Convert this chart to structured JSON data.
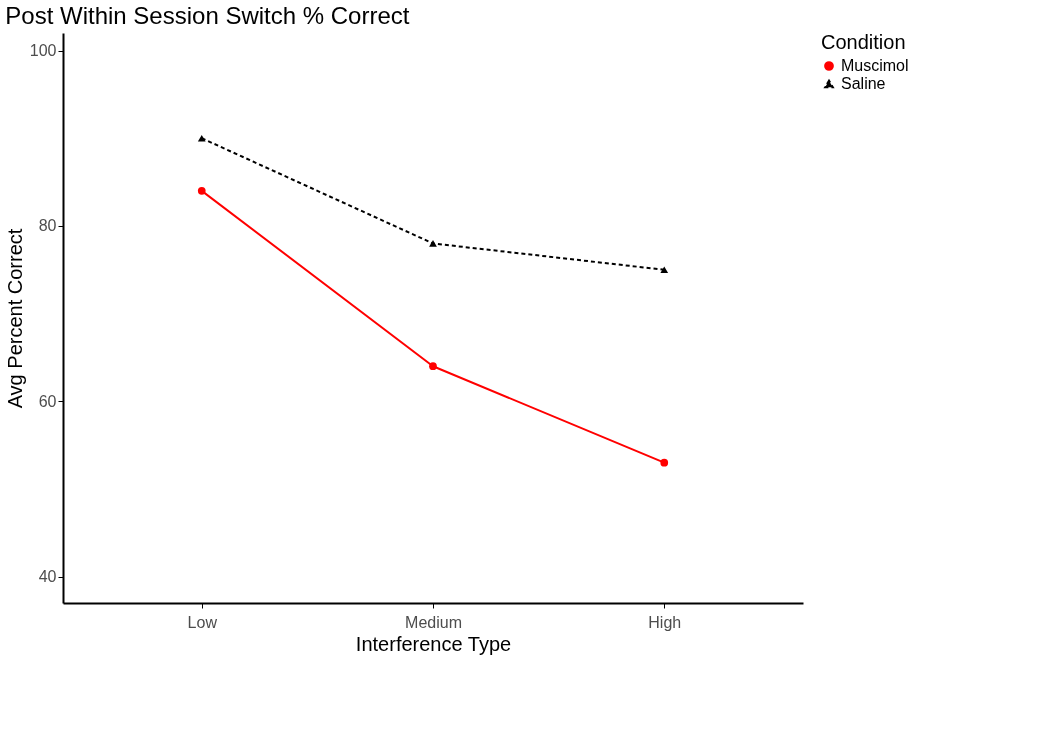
{
  "chart_data": {
    "type": "line",
    "title": "Post Within Session Switch % Correct",
    "xlabel": "Interference Type",
    "ylabel": "Avg Percent Correct",
    "legend_title": "Condition",
    "categories": [
      "Low",
      "Medium",
      "High"
    ],
    "series": [
      {
        "name": "Muscimol",
        "color": "#ff0000",
        "values": [
          84,
          64,
          53
        ],
        "marker": "circle",
        "line_style": "solid"
      },
      {
        "name": "Saline",
        "color": "#000000",
        "values": [
          90,
          78,
          75
        ],
        "marker": "triangle",
        "line_style": "dashed"
      }
    ],
    "ylim": [
      37,
      102
    ],
    "yticks": [
      40,
      60,
      80,
      100
    ],
    "grid": false,
    "legend": "right"
  }
}
